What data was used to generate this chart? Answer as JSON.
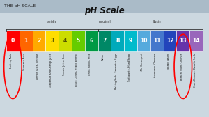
{
  "title": "pH Scale",
  "header": "THE pH SCALE",
  "background_color": "#ccd8e0",
  "header_color": "#aabbc8",
  "bar_colors": [
    "#ff0000",
    "#ff6600",
    "#ffaa00",
    "#ffdd00",
    "#ccdd00",
    "#66cc00",
    "#009944",
    "#008866",
    "#00aabb",
    "#00bbcc",
    "#55aadd",
    "#4477cc",
    "#2244bb",
    "#6633aa",
    "#9966bb"
  ],
  "ph_labels": [
    "0",
    "1",
    "2",
    "3",
    "4",
    "5",
    "6",
    "7",
    "8",
    "9",
    "10",
    "11",
    "12",
    "13",
    "14"
  ],
  "substances": [
    "Battery Acid",
    "Stomach Acid",
    "Lemon Juice, Vinegar",
    "Grapefruit and Orange Juice",
    "Tomato Juice, Beer",
    "Black Coffee, Pepto Bismol",
    "Urine, Saliva, Milk",
    "Water",
    "Baking Soda, Seawater, Eggs",
    "Toothpaste, Hand Soap",
    "Mild Detergent",
    "Ammonia, Cleaners",
    "Soapy Water",
    "Bleach, Oven Cleaner",
    "Drain Cleaner, Caustic Soda"
  ],
  "sections": [
    {
      "name": "acidic",
      "start": 0,
      "end": 6
    },
    {
      "name": "neutral",
      "start": 7,
      "end": 7
    },
    {
      "name": "Basic",
      "start": 8,
      "end": 14
    }
  ],
  "circled_items": [
    0,
    13
  ],
  "num_text_colors": [
    "white",
    "white",
    "white",
    "#555500",
    "#555500",
    "white",
    "white",
    "white",
    "white",
    "white",
    "white",
    "white",
    "white",
    "white",
    "white"
  ]
}
